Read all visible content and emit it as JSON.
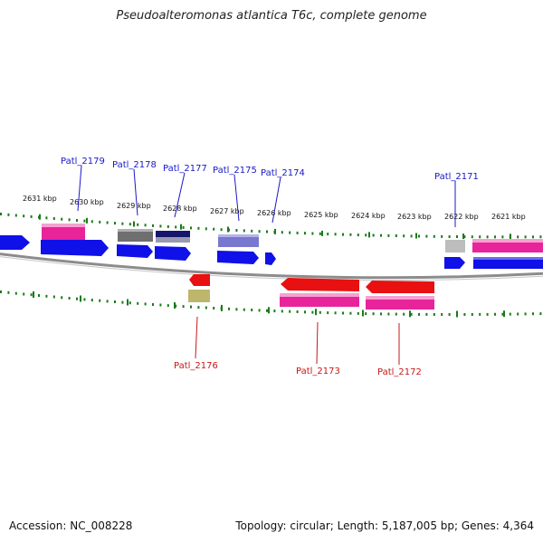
{
  "title": "Pseudoalteromonas atlantica T6c, complete genome",
  "accession": "Accession: NC_008228",
  "topology": "Topology: circular; Length: 5,187,005 bp; Genes: 4,364",
  "colors": {
    "forward_cds": "#1010e8",
    "reverse_cds": "#e81010",
    "magenta_feature": "#e8249a",
    "gray_feature": "#6f6f6f",
    "navy_feature": "#15156e",
    "lavender_feature": "#7878d0",
    "light_gray_feature": "#bdbdbd",
    "olive_feature": "#bdb66c",
    "backbone": "#8c8c8c",
    "tick": "#1a7a1a",
    "forward_label": "#1818c8",
    "reverse_label": "#c81818"
  },
  "scale_labels": [
    "2631 kbp",
    "2630 kbp",
    "2629 kbp",
    "2628 kbp",
    "2627 kbp",
    "2626 kbp",
    "2625 kbp",
    "2624 kbp",
    "2623 kbp",
    "2622 kbp",
    "2621 kbp"
  ],
  "forward_gene_labels": [
    "Patl_2179",
    "Patl_2178",
    "Patl_2177",
    "Patl_2175",
    "Patl_2174",
    "Patl_2171"
  ],
  "reverse_gene_labels": [
    "Patl_2176",
    "Patl_2173",
    "Patl_2172"
  ]
}
